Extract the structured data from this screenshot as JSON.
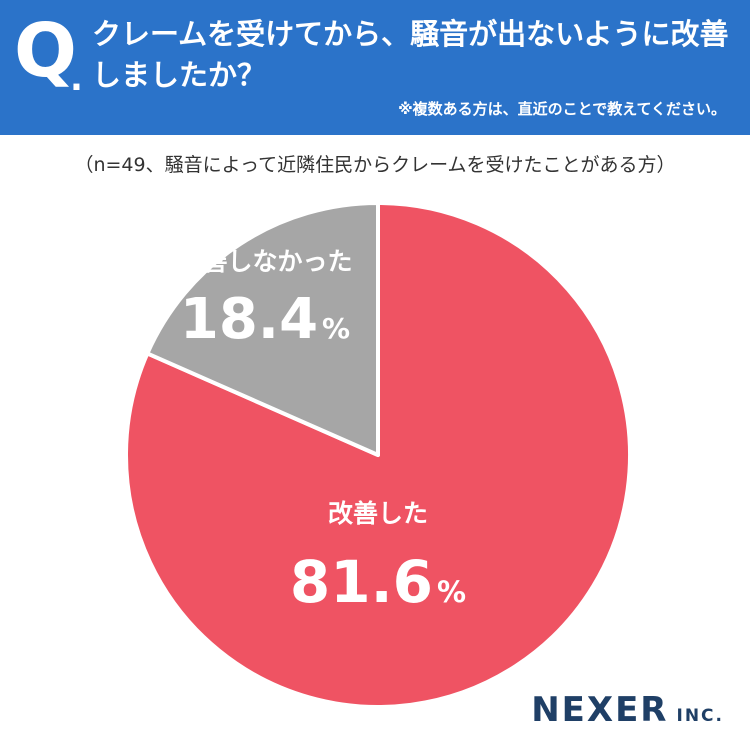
{
  "header": {
    "q_mark": "Q",
    "question": "クレームを受けてから、騒音が出ないように改善しましたか？",
    "note": "※複数ある方は、直近のことで教えてください。"
  },
  "sample_note": "（n=49、騒音によって近隣住民からクレームを受けたことがある方）",
  "chart_data": {
    "type": "pie",
    "title": "",
    "unit": "%",
    "slices": [
      {
        "label": "改善した",
        "value": 81.6,
        "color": "#ef5363"
      },
      {
        "label": "改善しなかった",
        "value": 18.4,
        "color": "#a6a6a6"
      }
    ]
  },
  "logo": {
    "main": "NEXER",
    "sub": "INC."
  }
}
